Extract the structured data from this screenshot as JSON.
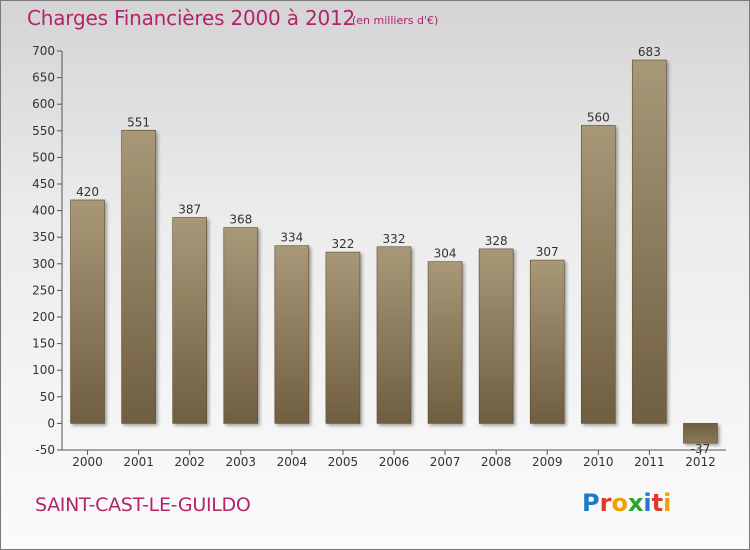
{
  "header": {
    "title": "Charges Financières 2000 à 2012",
    "unit": "(en milliers d'€)"
  },
  "footer": {
    "commune": "SAINT-CAST-LE-GUILDO",
    "logo": "Proxiti"
  },
  "colors": {
    "accent": "#b4236b",
    "bar_light": "#a89878",
    "bar_dark": "#6f5e40",
    "axis": "#555555"
  },
  "chart_data": {
    "type": "bar",
    "title": "Charges Financières 2000 à 2012",
    "subtitle": "(en milliers d'€)",
    "xlabel": "",
    "ylabel": "",
    "categories": [
      "2000",
      "2001",
      "2002",
      "2003",
      "2004",
      "2005",
      "2006",
      "2007",
      "2008",
      "2009",
      "2010",
      "2011",
      "2012"
    ],
    "values": [
      420,
      551,
      387,
      368,
      334,
      322,
      332,
      304,
      328,
      307,
      560,
      683,
      -37
    ],
    "data_labels": [
      "420",
      "551",
      "387",
      "368",
      "334",
      "322",
      "332",
      "304",
      "328",
      "307",
      "560",
      "683",
      "-37"
    ],
    "ylim": [
      -50,
      700
    ],
    "yticks": [
      -50,
      0,
      50,
      100,
      150,
      200,
      250,
      300,
      350,
      400,
      450,
      500,
      550,
      600,
      650,
      700
    ],
    "grid": false,
    "legend": "none"
  }
}
